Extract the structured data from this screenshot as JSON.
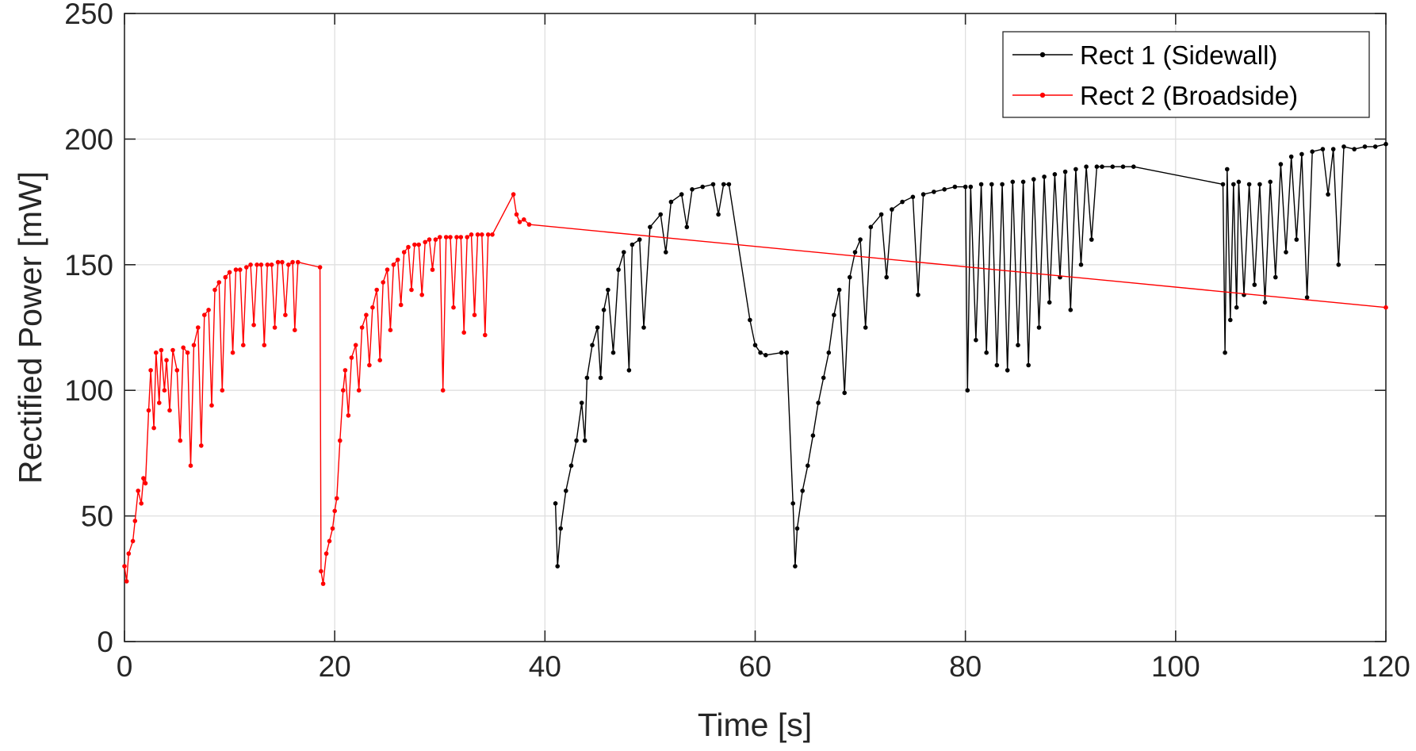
{
  "chart_data": {
    "type": "line",
    "title": "",
    "xlabel": "Time [s]",
    "ylabel": "Rectified Power [mW]",
    "xlim": [
      0,
      120
    ],
    "ylim": [
      0,
      250
    ],
    "xticks": [
      "0",
      "20",
      "40",
      "60",
      "80",
      "100",
      "120"
    ],
    "yticks": [
      "0",
      "50",
      "100",
      "150",
      "200",
      "250"
    ],
    "grid": true,
    "legend_position": "top-right",
    "series": [
      {
        "name": "Rect 1 (Sidewall)",
        "color": "#000000",
        "marker": "dot",
        "points": [
          [
            41.0,
            55
          ],
          [
            41.2,
            30
          ],
          [
            41.5,
            45
          ],
          [
            42.0,
            60
          ],
          [
            42.5,
            70
          ],
          [
            43.0,
            80
          ],
          [
            43.5,
            95
          ],
          [
            43.8,
            80
          ],
          [
            44.0,
            105
          ],
          [
            44.5,
            118
          ],
          [
            45.0,
            125
          ],
          [
            45.3,
            105
          ],
          [
            45.6,
            132
          ],
          [
            46.0,
            140
          ],
          [
            46.5,
            115
          ],
          [
            47.0,
            148
          ],
          [
            47.5,
            155
          ],
          [
            48.0,
            108
          ],
          [
            48.3,
            158
          ],
          [
            49.0,
            160
          ],
          [
            49.4,
            125
          ],
          [
            50.0,
            165
          ],
          [
            51.0,
            170
          ],
          [
            51.5,
            155
          ],
          [
            52.0,
            175
          ],
          [
            53.0,
            178
          ],
          [
            53.5,
            165
          ],
          [
            54.0,
            180
          ],
          [
            55.0,
            181
          ],
          [
            56.0,
            182
          ],
          [
            56.5,
            170
          ],
          [
            57.0,
            182
          ],
          [
            57.5,
            182
          ],
          [
            59.5,
            128
          ],
          [
            60.0,
            118
          ],
          [
            60.5,
            115
          ],
          [
            61.0,
            114
          ],
          [
            62.5,
            115
          ],
          [
            63.0,
            115
          ],
          [
            63.6,
            55
          ],
          [
            63.8,
            30
          ],
          [
            64.0,
            45
          ],
          [
            64.5,
            60
          ],
          [
            65.0,
            70
          ],
          [
            65.5,
            82
          ],
          [
            66.0,
            95
          ],
          [
            66.5,
            105
          ],
          [
            67.0,
            115
          ],
          [
            67.5,
            130
          ],
          [
            68.0,
            140
          ],
          [
            68.5,
            99
          ],
          [
            69.0,
            145
          ],
          [
            69.5,
            155
          ],
          [
            70.0,
            160
          ],
          [
            70.5,
            125
          ],
          [
            71.0,
            165
          ],
          [
            72.0,
            170
          ],
          [
            72.5,
            145
          ],
          [
            73.0,
            172
          ],
          [
            74.0,
            175
          ],
          [
            75.0,
            177
          ],
          [
            75.5,
            138
          ],
          [
            76.0,
            178
          ],
          [
            77.0,
            179
          ],
          [
            78.0,
            180
          ],
          [
            79.0,
            181
          ],
          [
            80.0,
            181
          ],
          [
            80.2,
            100
          ],
          [
            80.5,
            181
          ],
          [
            81.0,
            120
          ],
          [
            81.5,
            182
          ],
          [
            82.0,
            115
          ],
          [
            82.5,
            182
          ],
          [
            83.0,
            110
          ],
          [
            83.5,
            182
          ],
          [
            84.0,
            108
          ],
          [
            84.5,
            183
          ],
          [
            85.0,
            118
          ],
          [
            85.5,
            183
          ],
          [
            86.0,
            110
          ],
          [
            86.5,
            184
          ],
          [
            87.0,
            125
          ],
          [
            87.5,
            185
          ],
          [
            88.0,
            135
          ],
          [
            88.5,
            186
          ],
          [
            89.0,
            145
          ],
          [
            89.5,
            187
          ],
          [
            90.0,
            132
          ],
          [
            90.5,
            188
          ],
          [
            91.0,
            150
          ],
          [
            91.5,
            189
          ],
          [
            92.0,
            160
          ],
          [
            92.5,
            189
          ],
          [
            93.0,
            189
          ],
          [
            94.0,
            189
          ],
          [
            95.0,
            189
          ],
          [
            96.0,
            189
          ],
          [
            104.5,
            182
          ],
          [
            104.7,
            115
          ],
          [
            104.9,
            188
          ],
          [
            105.2,
            128
          ],
          [
            105.5,
            182
          ],
          [
            105.8,
            133
          ],
          [
            106.0,
            183
          ],
          [
            106.5,
            138
          ],
          [
            107.0,
            182
          ],
          [
            107.5,
            142
          ],
          [
            108.0,
            182
          ],
          [
            108.5,
            135
          ],
          [
            109.0,
            183
          ],
          [
            109.5,
            145
          ],
          [
            110.0,
            190
          ],
          [
            110.5,
            155
          ],
          [
            111.0,
            193
          ],
          [
            111.5,
            160
          ],
          [
            112.0,
            194
          ],
          [
            112.5,
            137
          ],
          [
            113.0,
            195
          ],
          [
            114.0,
            196
          ],
          [
            114.5,
            178
          ],
          [
            115.0,
            196
          ],
          [
            115.5,
            150
          ],
          [
            116.0,
            197
          ],
          [
            117.0,
            196
          ],
          [
            118.0,
            197
          ],
          [
            119.0,
            197
          ],
          [
            120.0,
            198
          ]
        ]
      },
      {
        "name": "Rect 2 (Broadside)",
        "color": "#ff0000",
        "marker": "dot",
        "points": [
          [
            0.0,
            30
          ],
          [
            0.2,
            24
          ],
          [
            0.4,
            35
          ],
          [
            0.8,
            40
          ],
          [
            1.0,
            48
          ],
          [
            1.3,
            60
          ],
          [
            1.6,
            55
          ],
          [
            1.8,
            65
          ],
          [
            2.0,
            63
          ],
          [
            2.3,
            92
          ],
          [
            2.5,
            108
          ],
          [
            2.8,
            85
          ],
          [
            3.0,
            115
          ],
          [
            3.3,
            95
          ],
          [
            3.5,
            116
          ],
          [
            3.8,
            100
          ],
          [
            4.0,
            112
          ],
          [
            4.3,
            92
          ],
          [
            4.6,
            116
          ],
          [
            5.0,
            108
          ],
          [
            5.3,
            80
          ],
          [
            5.6,
            117
          ],
          [
            6.0,
            115
          ],
          [
            6.3,
            70
          ],
          [
            6.6,
            118
          ],
          [
            7.0,
            125
          ],
          [
            7.3,
            78
          ],
          [
            7.6,
            130
          ],
          [
            8.0,
            132
          ],
          [
            8.3,
            94
          ],
          [
            8.6,
            140
          ],
          [
            9.0,
            143
          ],
          [
            9.3,
            100
          ],
          [
            9.6,
            145
          ],
          [
            10.0,
            147
          ],
          [
            10.3,
            115
          ],
          [
            10.6,
            148
          ],
          [
            11.0,
            148
          ],
          [
            11.3,
            118
          ],
          [
            11.6,
            149
          ],
          [
            12.0,
            150
          ],
          [
            12.3,
            126
          ],
          [
            12.6,
            150
          ],
          [
            13.0,
            150
          ],
          [
            13.3,
            118
          ],
          [
            13.6,
            150
          ],
          [
            14.0,
            150
          ],
          [
            14.3,
            125
          ],
          [
            14.6,
            151
          ],
          [
            15.0,
            151
          ],
          [
            15.3,
            130
          ],
          [
            15.6,
            150
          ],
          [
            16.0,
            151
          ],
          [
            16.2,
            124
          ],
          [
            16.5,
            151
          ],
          [
            18.6,
            149
          ],
          [
            18.7,
            28
          ],
          [
            18.9,
            23
          ],
          [
            19.2,
            35
          ],
          [
            19.5,
            40
          ],
          [
            19.8,
            45
          ],
          [
            20.0,
            52
          ],
          [
            20.2,
            57
          ],
          [
            20.5,
            80
          ],
          [
            20.8,
            100
          ],
          [
            21.0,
            108
          ],
          [
            21.3,
            90
          ],
          [
            21.6,
            113
          ],
          [
            22.0,
            118
          ],
          [
            22.3,
            100
          ],
          [
            22.6,
            125
          ],
          [
            23.0,
            130
          ],
          [
            23.3,
            110
          ],
          [
            23.6,
            133
          ],
          [
            24.0,
            140
          ],
          [
            24.3,
            112
          ],
          [
            24.6,
            143
          ],
          [
            25.0,
            148
          ],
          [
            25.3,
            124
          ],
          [
            25.6,
            150
          ],
          [
            26.0,
            152
          ],
          [
            26.3,
            134
          ],
          [
            26.6,
            155
          ],
          [
            27.0,
            157
          ],
          [
            27.3,
            140
          ],
          [
            27.6,
            158
          ],
          [
            28.0,
            158
          ],
          [
            28.3,
            138
          ],
          [
            28.6,
            159
          ],
          [
            29.0,
            160
          ],
          [
            29.3,
            148
          ],
          [
            29.6,
            160
          ],
          [
            30.0,
            161
          ],
          [
            30.3,
            100
          ],
          [
            30.6,
            161
          ],
          [
            31.0,
            161
          ],
          [
            31.3,
            133
          ],
          [
            31.6,
            161
          ],
          [
            32.0,
            161
          ],
          [
            32.3,
            123
          ],
          [
            32.6,
            161
          ],
          [
            33.0,
            162
          ],
          [
            33.3,
            130
          ],
          [
            33.6,
            162
          ],
          [
            34.0,
            162
          ],
          [
            34.3,
            122
          ],
          [
            34.6,
            162
          ],
          [
            35.0,
            162
          ],
          [
            37.0,
            178
          ],
          [
            37.3,
            170
          ],
          [
            37.6,
            167
          ],
          [
            38.0,
            168
          ],
          [
            38.5,
            166
          ],
          [
            120.0,
            133
          ]
        ]
      }
    ]
  }
}
